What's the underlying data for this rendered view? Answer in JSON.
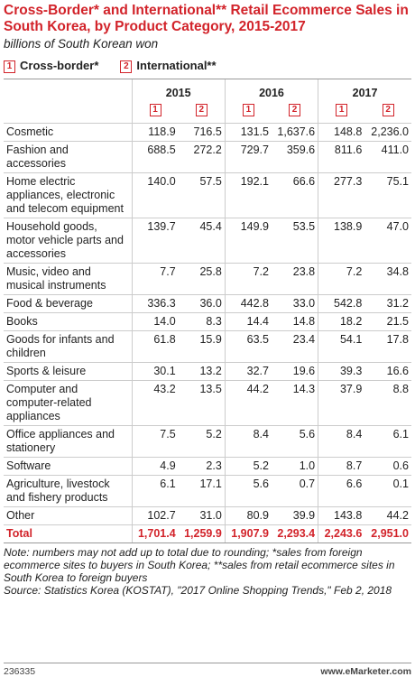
{
  "header": {
    "title": "Cross-Border* and International** Retail Ecommerce Sales in South Korea, by Product Category, 2015-2017",
    "subtitle": "billions of South Korean won"
  },
  "legend": [
    {
      "marker": "1",
      "label": "Cross-border*"
    },
    {
      "marker": "2",
      "label": "International**"
    }
  ],
  "table": {
    "years": [
      "2015",
      "2016",
      "2017"
    ],
    "rows": [
      [
        "Cosmetic",
        "118.9",
        "716.5",
        "131.5",
        "1,637.6",
        "148.8",
        "2,236.0"
      ],
      [
        "Fashion and accessories",
        "688.5",
        "272.2",
        "729.7",
        "359.6",
        "811.6",
        "411.0"
      ],
      [
        "Home electric appliances, electronic and telecom equipment",
        "140.0",
        "57.5",
        "192.1",
        "66.6",
        "277.3",
        "75.1"
      ],
      [
        "Household goods, motor vehicle parts and accessories",
        "139.7",
        "45.4",
        "149.9",
        "53.5",
        "138.9",
        "47.0"
      ],
      [
        "Music, video and musical instruments",
        "7.7",
        "25.8",
        "7.2",
        "23.8",
        "7.2",
        "34.8"
      ],
      [
        "Food & beverage",
        "336.3",
        "36.0",
        "442.8",
        "33.0",
        "542.8",
        "31.2"
      ],
      [
        "Books",
        "14.0",
        "8.3",
        "14.4",
        "14.8",
        "18.2",
        "21.5"
      ],
      [
        "Goods for infants and children",
        "61.8",
        "15.9",
        "63.5",
        "23.4",
        "54.1",
        "17.8"
      ],
      [
        "Sports & leisure",
        "30.1",
        "13.2",
        "32.7",
        "19.6",
        "39.3",
        "16.6"
      ],
      [
        "Computer and computer-related appliances",
        "43.2",
        "13.5",
        "44.2",
        "14.3",
        "37.9",
        "8.8"
      ],
      [
        "Office appliances and stationery",
        "7.5",
        "5.2",
        "8.4",
        "5.6",
        "8.4",
        "6.1"
      ],
      [
        "Software",
        "4.9",
        "2.3",
        "5.2",
        "1.0",
        "8.7",
        "0.6"
      ],
      [
        "Agriculture, livestock and fishery products",
        "6.1",
        "17.1",
        "5.6",
        "0.7",
        "6.6",
        "0.1"
      ],
      [
        "Other",
        "102.7",
        "31.0",
        "80.9",
        "39.9",
        "143.8",
        "44.2"
      ]
    ],
    "total": [
      "Total",
      "1,701.4",
      "1,259.9",
      "1,907.9",
      "2,293.4",
      "2,243.6",
      "2,951.0"
    ]
  },
  "notes": {
    "note": "Note: numbers may not add up to total due to rounding; *sales from foreign ecommerce sites to buyers in South Korea; **sales from retail ecommerce sites in South Korea to foreign buyers",
    "source": "Source: Statistics Korea (KOSTAT), \"2017 Online Shopping Trends,\" Feb 2, 2018"
  },
  "footer": {
    "id": "236335",
    "brand": "www.eMarketer.com"
  }
}
